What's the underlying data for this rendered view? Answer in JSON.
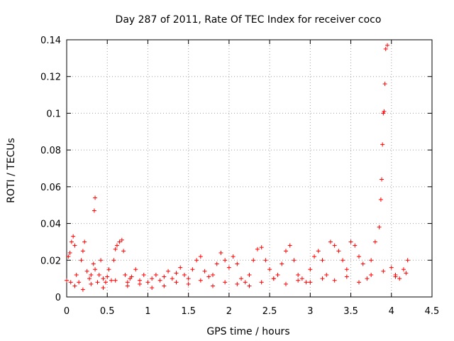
{
  "chart_data": {
    "type": "scatter",
    "title": "Day 287 of 2011, Rate Of TEC Index for receiver coco",
    "xlabel": "GPS time / hours",
    "ylabel": "ROTI / TECUs",
    "xlim": [
      0,
      4.5
    ],
    "ylim": [
      0,
      0.14
    ],
    "xticks": [
      "0",
      "0.5",
      "1",
      "1.5",
      "2",
      "2.5",
      "3",
      "3.5",
      "4",
      "4.5"
    ],
    "yticks": [
      "0",
      "0.02",
      "0.04",
      "0.06",
      "0.08",
      "0.1",
      "0.12",
      "0.14"
    ],
    "grid": true,
    "marker": "+",
    "color": "#ff0000",
    "series": [
      {
        "name": "ROTI",
        "x": [
          0.0,
          0.02,
          0.04,
          0.06,
          0.08,
          0.1,
          0.12,
          0.15,
          0.18,
          0.2,
          0.22,
          0.25,
          0.28,
          0.3,
          0.33,
          0.35,
          0.34,
          0.35,
          0.38,
          0.4,
          0.42,
          0.45,
          0.48,
          0.5,
          0.52,
          0.55,
          0.58,
          0.6,
          0.62,
          0.65,
          0.68,
          0.7,
          0.72,
          0.75,
          0.78,
          0.8,
          0.85,
          0.9,
          0.95,
          1.0,
          1.05,
          1.1,
          1.15,
          1.2,
          1.25,
          1.3,
          1.35,
          1.4,
          1.45,
          1.5,
          1.55,
          1.6,
          1.65,
          1.7,
          1.75,
          1.8,
          1.85,
          1.9,
          1.95,
          2.0,
          2.05,
          2.1,
          2.15,
          2.2,
          2.25,
          2.3,
          2.35,
          2.4,
          2.45,
          2.5,
          2.55,
          2.6,
          2.65,
          2.7,
          2.75,
          2.8,
          2.85,
          2.9,
          2.95,
          3.0,
          3.05,
          3.1,
          3.15,
          3.2,
          3.25,
          3.3,
          3.35,
          3.4,
          3.45,
          3.5,
          3.55,
          3.6,
          3.65,
          3.7,
          3.75,
          3.8,
          3.85,
          3.87,
          3.88,
          3.89,
          3.9,
          3.91,
          3.92,
          3.93,
          3.95,
          4.0,
          4.05,
          4.1,
          4.15,
          4.2,
          0.05,
          0.1,
          0.2,
          0.3,
          0.45,
          0.6,
          0.75,
          0.9,
          1.05,
          1.2,
          1.35,
          1.5,
          1.65,
          1.8,
          1.95,
          2.1,
          2.25,
          2.4,
          2.55,
          2.7,
          2.85,
          3.0,
          3.15,
          3.3,
          3.45,
          3.6,
          3.75,
          3.9,
          4.05,
          4.18
        ],
        "y": [
          0.009,
          0.022,
          0.024,
          0.03,
          0.033,
          0.028,
          0.012,
          0.008,
          0.02,
          0.025,
          0.03,
          0.014,
          0.01,
          0.012,
          0.018,
          0.054,
          0.047,
          0.015,
          0.008,
          0.012,
          0.02,
          0.01,
          0.008,
          0.011,
          0.015,
          0.009,
          0.02,
          0.026,
          0.028,
          0.03,
          0.031,
          0.025,
          0.012,
          0.008,
          0.01,
          0.011,
          0.015,
          0.009,
          0.012,
          0.008,
          0.01,
          0.012,
          0.009,
          0.011,
          0.014,
          0.01,
          0.013,
          0.016,
          0.012,
          0.01,
          0.015,
          0.02,
          0.022,
          0.014,
          0.011,
          0.012,
          0.018,
          0.024,
          0.02,
          0.016,
          0.022,
          0.018,
          0.01,
          0.008,
          0.012,
          0.02,
          0.026,
          0.027,
          0.02,
          0.015,
          0.01,
          0.012,
          0.018,
          0.025,
          0.028,
          0.02,
          0.012,
          0.01,
          0.008,
          0.015,
          0.022,
          0.025,
          0.02,
          0.012,
          0.03,
          0.028,
          0.025,
          0.02,
          0.015,
          0.03,
          0.028,
          0.022,
          0.018,
          0.01,
          0.02,
          0.03,
          0.038,
          0.053,
          0.064,
          0.083,
          0.1,
          0.101,
          0.116,
          0.135,
          0.137,
          0.016,
          0.012,
          0.01,
          0.015,
          0.02,
          0.008,
          0.006,
          0.004,
          0.007,
          0.005,
          0.009,
          0.006,
          0.007,
          0.005,
          0.006,
          0.008,
          0.007,
          0.009,
          0.006,
          0.008,
          0.007,
          0.006,
          0.008,
          0.01,
          0.007,
          0.009,
          0.008,
          0.01,
          0.009,
          0.011,
          0.008,
          0.012,
          0.014,
          0.011,
          0.013
        ]
      }
    ]
  }
}
